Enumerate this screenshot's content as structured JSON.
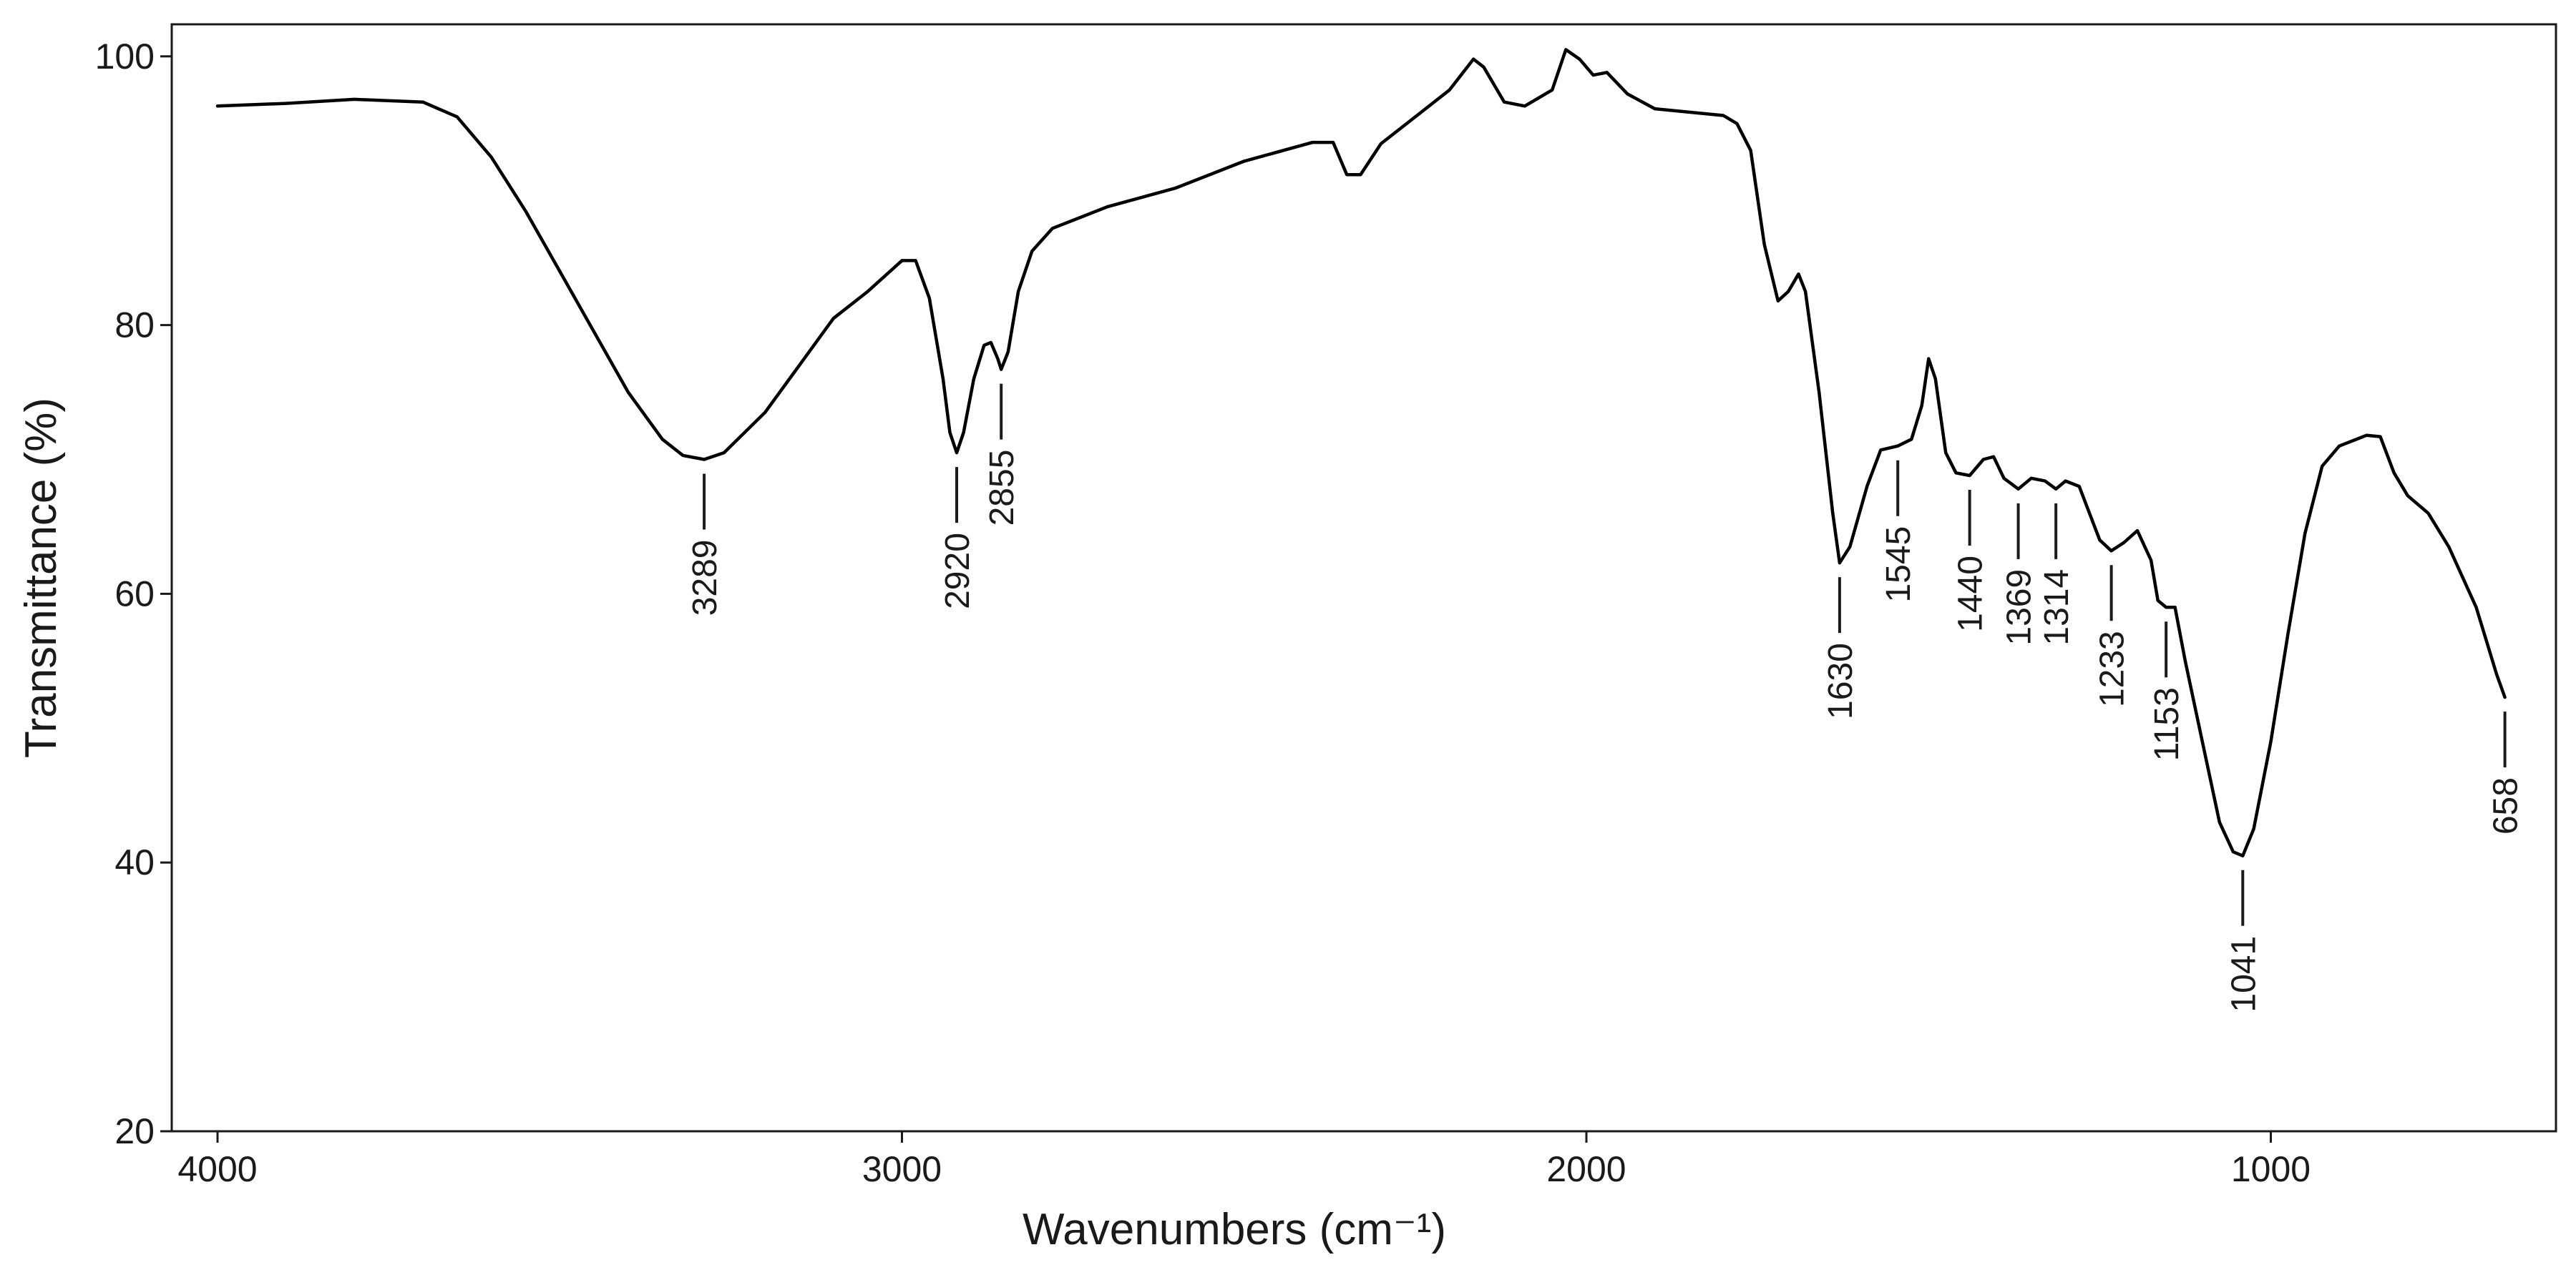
{
  "chart_data": {
    "type": "line",
    "title": "",
    "xlabel": "Wavenumbers  (cm⁻¹)",
    "ylabel": "Transmittance (%)",
    "xlim": [
      4000,
      600
    ],
    "ylim": [
      20,
      100
    ],
    "x_reversed": true,
    "grid": false,
    "legend": "none",
    "line_color": "#000000",
    "xticks": [
      4000,
      3000,
      2000,
      1000
    ],
    "yticks": [
      100,
      80,
      60,
      40,
      20
    ],
    "series": [
      {
        "points": [
          [
            4000,
            96.3
          ],
          [
            3900,
            96.5
          ],
          [
            3800,
            96.8
          ],
          [
            3700,
            96.6
          ],
          [
            3650,
            95.5
          ],
          [
            3600,
            92.5
          ],
          [
            3550,
            88.5
          ],
          [
            3500,
            84
          ],
          [
            3450,
            79.5
          ],
          [
            3400,
            75
          ],
          [
            3350,
            71.5
          ],
          [
            3320,
            70.3
          ],
          [
            3289,
            70
          ],
          [
            3260,
            70.5
          ],
          [
            3200,
            73.5
          ],
          [
            3150,
            77
          ],
          [
            3100,
            80.5
          ],
          [
            3050,
            82.5
          ],
          [
            3000,
            84.8
          ],
          [
            2980,
            84.8
          ],
          [
            2960,
            82
          ],
          [
            2940,
            76
          ],
          [
            2930,
            72
          ],
          [
            2920,
            70.5
          ],
          [
            2910,
            72
          ],
          [
            2895,
            76
          ],
          [
            2880,
            78.5
          ],
          [
            2870,
            78.7
          ],
          [
            2860,
            77.5
          ],
          [
            2855,
            76.7
          ],
          [
            2845,
            78
          ],
          [
            2830,
            82.5
          ],
          [
            2810,
            85.5
          ],
          [
            2780,
            87.2
          ],
          [
            2700,
            88.8
          ],
          [
            2600,
            90.2
          ],
          [
            2500,
            92.2
          ],
          [
            2400,
            93.6
          ],
          [
            2370,
            93.6
          ],
          [
            2350,
            91.2
          ],
          [
            2330,
            91.2
          ],
          [
            2300,
            93.5
          ],
          [
            2250,
            95.5
          ],
          [
            2200,
            97.5
          ],
          [
            2165,
            99.8
          ],
          [
            2150,
            99.2
          ],
          [
            2120,
            96.6
          ],
          [
            2090,
            96.3
          ],
          [
            2050,
            97.5
          ],
          [
            2030,
            100.5
          ],
          [
            2010,
            99.8
          ],
          [
            1990,
            98.6
          ],
          [
            1970,
            98.8
          ],
          [
            1940,
            97.2
          ],
          [
            1900,
            96.1
          ],
          [
            1800,
            95.6
          ],
          [
            1780,
            95
          ],
          [
            1760,
            93
          ],
          [
            1740,
            86
          ],
          [
            1720,
            81.8
          ],
          [
            1705,
            82.5
          ],
          [
            1690,
            83.8
          ],
          [
            1680,
            82.5
          ],
          [
            1660,
            75
          ],
          [
            1640,
            66
          ],
          [
            1630,
            62.3
          ],
          [
            1615,
            63.5
          ],
          [
            1590,
            68
          ],
          [
            1570,
            70.7
          ],
          [
            1545,
            71
          ],
          [
            1525,
            71.5
          ],
          [
            1510,
            74
          ],
          [
            1500,
            77.5
          ],
          [
            1490,
            76
          ],
          [
            1475,
            70.5
          ],
          [
            1460,
            69
          ],
          [
            1440,
            68.8
          ],
          [
            1420,
            70
          ],
          [
            1405,
            70.2
          ],
          [
            1390,
            68.6
          ],
          [
            1369,
            67.8
          ],
          [
            1350,
            68.6
          ],
          [
            1330,
            68.4
          ],
          [
            1314,
            67.8
          ],
          [
            1300,
            68.4
          ],
          [
            1280,
            68
          ],
          [
            1250,
            64
          ],
          [
            1233,
            63.2
          ],
          [
            1215,
            63.8
          ],
          [
            1195,
            64.7
          ],
          [
            1175,
            62.5
          ],
          [
            1165,
            59.5
          ],
          [
            1153,
            59
          ],
          [
            1140,
            59
          ],
          [
            1125,
            55
          ],
          [
            1100,
            49
          ],
          [
            1075,
            43
          ],
          [
            1055,
            40.8
          ],
          [
            1041,
            40.5
          ],
          [
            1025,
            42.5
          ],
          [
            1000,
            49
          ],
          [
            975,
            57
          ],
          [
            950,
            64.5
          ],
          [
            925,
            69.5
          ],
          [
            900,
            71
          ],
          [
            860,
            71.8
          ],
          [
            840,
            71.7
          ],
          [
            820,
            69
          ],
          [
            800,
            67.3
          ],
          [
            770,
            66
          ],
          [
            740,
            63.5
          ],
          [
            700,
            59
          ],
          [
            670,
            54
          ],
          [
            658,
            52.3
          ]
        ]
      }
    ],
    "annotations": [
      {
        "x": 3289,
        "text": "3289"
      },
      {
        "x": 2920,
        "text": "2920"
      },
      {
        "x": 2855,
        "text": "2855"
      },
      {
        "x": 1630,
        "text": "1630"
      },
      {
        "x": 1545,
        "text": "1545"
      },
      {
        "x": 1440,
        "text": "1440"
      },
      {
        "x": 1369,
        "text": "1369"
      },
      {
        "x": 1314,
        "text": "1314"
      },
      {
        "x": 1233,
        "text": "1233"
      },
      {
        "x": 1153,
        "text": "1153"
      },
      {
        "x": 1041,
        "text": "1041"
      },
      {
        "x": 658,
        "text": "658"
      }
    ]
  }
}
